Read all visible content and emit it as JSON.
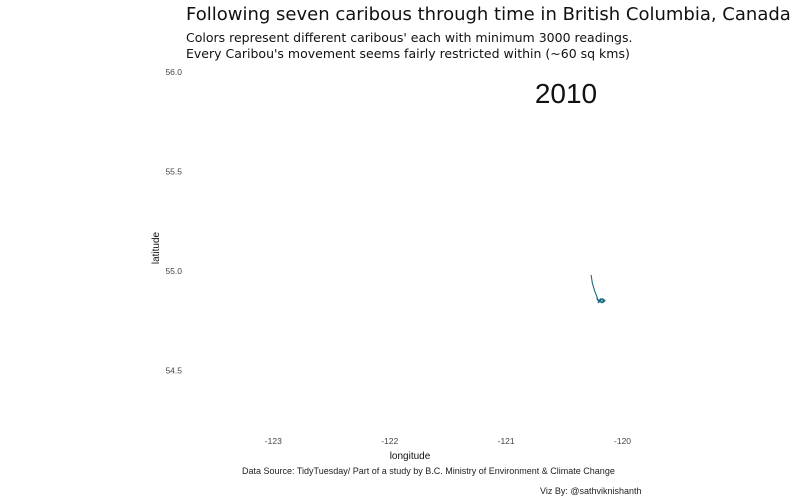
{
  "title": "Following seven caribous through time in British Columbia, Canada",
  "subtitle_lines": [
    "Colors represent different caribous' each with minimum 3000 readings.",
    "Every Caribou's movement seems fairly restricted within (~60 sq kms)"
  ],
  "caption": {
    "source": "Data Source: TidyTuesday/ Part of a study by  B.C. Ministry of Environment & Climate Change",
    "credit": "Viz By: @sathviknishanth"
  },
  "chart_data": {
    "type": "line",
    "title": "Following seven caribous through time in British Columbia, Canada",
    "xlabel": "longitude",
    "ylabel": "latitude",
    "xlim": [
      -123.75,
      -119.85
    ],
    "ylim": [
      54.22,
      56.0
    ],
    "x_ticks": [
      -123,
      -122,
      -121,
      -120
    ],
    "x_tick_labels": [
      "-123",
      "-122",
      "-121",
      "-120"
    ],
    "y_ticks": [
      54.5,
      55.0,
      55.5,
      56.0
    ],
    "y_tick_labels": [
      "54.5",
      "55.0",
      "55.5",
      "56.0"
    ],
    "grid": false,
    "annotation": "2010",
    "series": [
      {
        "color": "#1b6b80",
        "x": [
          -120.27,
          -120.26,
          -120.24,
          -120.22,
          -120.21,
          -120.22,
          -120.2,
          -120.17,
          -120.15,
          -120.17,
          -120.2,
          -120.18,
          -120.16,
          -120.19,
          -120.21,
          -120.18
        ],
        "y": [
          54.98,
          54.94,
          54.9,
          54.87,
          54.85,
          54.86,
          54.85,
          54.84,
          54.85,
          54.86,
          54.85,
          54.84,
          54.85,
          54.86,
          54.84,
          54.85
        ]
      }
    ]
  }
}
